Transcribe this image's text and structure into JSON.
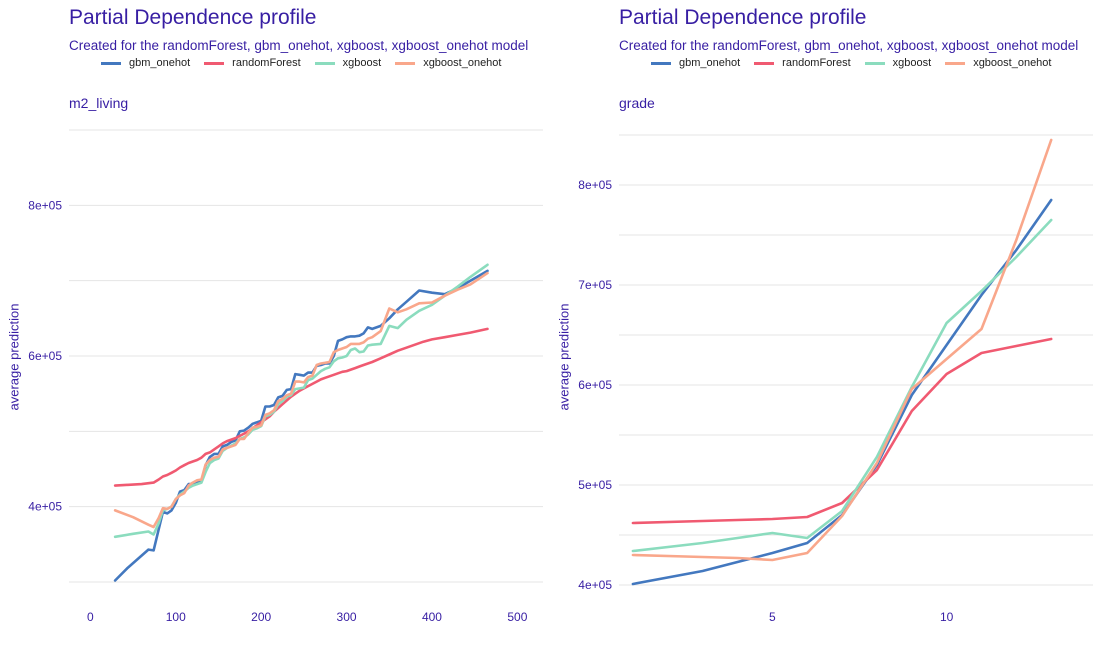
{
  "chart_data": [
    {
      "type": "line",
      "title": "Partial Dependence profile",
      "subtitle": "Created for the randomForest, gbm_onehot, xgboost, xgboost_onehot model",
      "panel_label": "m2_living",
      "xlabel": "",
      "ylabel": "average prediction",
      "xlim": [
        -25,
        530
      ],
      "ylim": [
        300000,
        900000
      ],
      "xticks": [
        0,
        100,
        200,
        300,
        400,
        500
      ],
      "yticks": [
        400000,
        600000,
        800000
      ],
      "ytick_labels": [
        "4e+05",
        "6e+05",
        "8e+05"
      ],
      "legend_position": "top",
      "grid": true,
      "series": [
        {
          "name": "gbm_onehot",
          "color": "#4378bf",
          "x": [
            29,
            43,
            68,
            74,
            80,
            85,
            90,
            95,
            100,
            105,
            110,
            115,
            120,
            125,
            130,
            135,
            140,
            145,
            150,
            155,
            160,
            165,
            170,
            175,
            180,
            185,
            190,
            195,
            200,
            205,
            210,
            215,
            220,
            225,
            230,
            235,
            240,
            245,
            250,
            255,
            260,
            265,
            270,
            275,
            280,
            285,
            290,
            295,
            300,
            305,
            310,
            315,
            320,
            325,
            330,
            340,
            350,
            360,
            370,
            385,
            400,
            415,
            430,
            445,
            465
          ],
          "y": [
            302000,
            318000,
            343000,
            342000,
            370000,
            393000,
            391000,
            395000,
            405000,
            420000,
            422000,
            430000,
            430000,
            432000,
            433000,
            455000,
            466000,
            470000,
            470000,
            480000,
            482000,
            486000,
            488000,
            500000,
            501000,
            505000,
            510000,
            512000,
            514000,
            533000,
            533000,
            535000,
            545000,
            547000,
            555000,
            556000,
            576000,
            575000,
            574000,
            578000,
            578000,
            587000,
            588000,
            590000,
            590000,
            600000,
            620000,
            622000,
            625000,
            626000,
            626000,
            627000,
            630000,
            638000,
            636000,
            640000,
            650000,
            662000,
            672000,
            687000,
            684000,
            682000,
            690000,
            700000,
            713000
          ]
        },
        {
          "name": "randomForest",
          "color": "#f05a71",
          "x": [
            29,
            45,
            60,
            74,
            80,
            85,
            90,
            95,
            100,
            105,
            110,
            115,
            120,
            125,
            130,
            135,
            140,
            145,
            150,
            155,
            160,
            165,
            170,
            175,
            180,
            185,
            190,
            195,
            200,
            205,
            210,
            215,
            220,
            225,
            230,
            235,
            240,
            245,
            250,
            255,
            260,
            265,
            270,
            275,
            280,
            285,
            290,
            295,
            300,
            305,
            310,
            315,
            320,
            325,
            330,
            340,
            350,
            360,
            370,
            380,
            390,
            400,
            415,
            430,
            445,
            465
          ],
          "y": [
            428000,
            429000,
            430000,
            432000,
            436000,
            440000,
            442000,
            445000,
            448000,
            452000,
            455000,
            458000,
            460000,
            462000,
            465000,
            470000,
            472000,
            476000,
            480000,
            484000,
            487000,
            489000,
            491000,
            494000,
            497000,
            500000,
            504000,
            508000,
            512000,
            516000,
            520000,
            526000,
            531000,
            536000,
            541000,
            546000,
            550000,
            554000,
            557000,
            560000,
            563000,
            566000,
            569000,
            571000,
            573000,
            575000,
            577000,
            579000,
            580000,
            582000,
            584000,
            586000,
            588000,
            590000,
            592000,
            597000,
            602000,
            607000,
            611000,
            615000,
            619000,
            622000,
            625000,
            628000,
            631000,
            636000
          ]
        },
        {
          "name": "xgboost",
          "color": "#8bdcbe",
          "x": [
            29,
            50,
            68,
            74,
            80,
            85,
            90,
            95,
            100,
            105,
            110,
            115,
            120,
            125,
            130,
            135,
            140,
            145,
            150,
            155,
            160,
            165,
            170,
            175,
            180,
            185,
            190,
            195,
            200,
            205,
            210,
            215,
            220,
            225,
            230,
            235,
            240,
            245,
            250,
            255,
            260,
            265,
            270,
            275,
            280,
            285,
            290,
            295,
            300,
            305,
            310,
            315,
            320,
            325,
            330,
            340,
            350,
            360,
            370,
            385,
            400,
            415,
            430,
            445,
            465
          ],
          "y": [
            360000,
            364000,
            367000,
            363000,
            378000,
            395000,
            397000,
            400000,
            410000,
            416000,
            420000,
            425000,
            428000,
            430000,
            432000,
            446000,
            458000,
            462000,
            464000,
            474000,
            478000,
            481000,
            484000,
            490000,
            492000,
            496000,
            502000,
            504000,
            507000,
            520000,
            522000,
            526000,
            536000,
            540000,
            546000,
            548000,
            556000,
            557000,
            558000,
            568000,
            570000,
            575000,
            580000,
            583000,
            585000,
            593000,
            597000,
            598000,
            600000,
            608000,
            610000,
            605000,
            606000,
            614000,
            615000,
            616000,
            640000,
            637000,
            648000,
            660000,
            668000,
            680000,
            692000,
            705000,
            721000
          ]
        },
        {
          "name": "xgboost_onehot",
          "color": "#f9a78b",
          "x": [
            29,
            50,
            68,
            74,
            80,
            85,
            90,
            95,
            100,
            105,
            110,
            115,
            120,
            125,
            130,
            135,
            140,
            145,
            150,
            155,
            160,
            165,
            170,
            175,
            180,
            185,
            190,
            195,
            200,
            205,
            210,
            215,
            220,
            225,
            230,
            235,
            240,
            245,
            250,
            255,
            260,
            265,
            270,
            275,
            280,
            285,
            290,
            295,
            300,
            305,
            310,
            315,
            320,
            325,
            330,
            340,
            350,
            360,
            370,
            385,
            400,
            415,
            430,
            445,
            465
          ],
          "y": [
            395000,
            386000,
            376000,
            373000,
            385000,
            398000,
            397000,
            400000,
            410000,
            415000,
            418000,
            428000,
            432000,
            435000,
            436000,
            456000,
            462000,
            465000,
            466000,
            476000,
            478000,
            480000,
            482000,
            490000,
            490000,
            498000,
            505000,
            506000,
            508000,
            522000,
            524000,
            528000,
            540000,
            543000,
            548000,
            550000,
            566000,
            566000,
            565000,
            572000,
            574000,
            588000,
            590000,
            591000,
            592000,
            605000,
            608000,
            610000,
            612000,
            616000,
            616000,
            616000,
            618000,
            623000,
            625000,
            633000,
            663000,
            658000,
            662000,
            670000,
            671000,
            680000,
            688000,
            695000,
            710000
          ]
        }
      ]
    },
    {
      "type": "line",
      "title": "Partial Dependence profile",
      "subtitle": "Created for the randomForest, gbm_onehot, xgboost, xgboost_onehot model",
      "panel_label": "grade",
      "xlabel": "",
      "ylabel": "average prediction",
      "xlim": [
        0.6,
        14.2
      ],
      "ylim": [
        395000,
        855000
      ],
      "xticks": [
        5,
        10
      ],
      "yticks": [
        400000,
        500000,
        600000,
        700000,
        800000
      ],
      "ytick_labels": [
        "4e+05",
        "5e+05",
        "6e+05",
        "7e+05",
        "8e+05"
      ],
      "legend_position": "top",
      "grid": true,
      "series": [
        {
          "name": "gbm_onehot",
          "color": "#4378bf",
          "x": [
            1,
            3,
            4,
            5,
            6,
            7,
            8,
            9,
            10,
            11,
            12,
            13
          ],
          "y": [
            401000,
            414000,
            423000,
            432000,
            442000,
            470000,
            520000,
            590000,
            640000,
            690000,
            735000,
            785000
          ]
        },
        {
          "name": "randomForest",
          "color": "#f05a71",
          "x": [
            1,
            3,
            4,
            5,
            6,
            7,
            8,
            9,
            10,
            11,
            12,
            13
          ],
          "y": [
            462000,
            464000,
            465000,
            466000,
            468000,
            482000,
            515000,
            574000,
            611000,
            632000,
            639000,
            646000
          ]
        },
        {
          "name": "xgboost",
          "color": "#8bdcbe",
          "x": [
            1,
            3,
            4,
            5,
            6,
            7,
            8,
            9,
            10,
            11,
            12,
            13
          ],
          "y": [
            434000,
            442000,
            447000,
            452000,
            447000,
            474000,
            528000,
            598000,
            662000,
            694000,
            728000,
            765000
          ]
        },
        {
          "name": "xgboost_onehot",
          "color": "#f9a78b",
          "x": [
            1,
            3,
            4,
            5,
            6,
            7,
            8,
            9,
            10,
            11,
            12,
            13
          ],
          "y": [
            430000,
            428000,
            427000,
            425000,
            432000,
            469000,
            522000,
            596000,
            626000,
            656000,
            745000,
            845000
          ]
        }
      ]
    }
  ]
}
